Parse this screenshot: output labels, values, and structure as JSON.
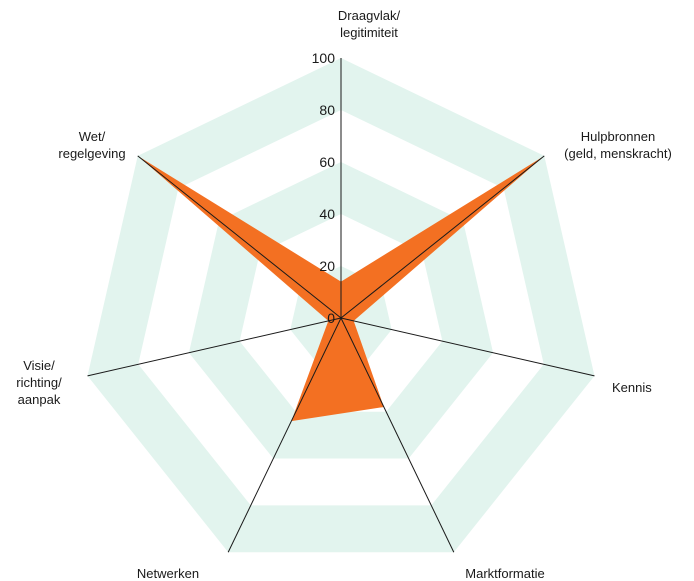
{
  "chart_data": {
    "type": "radar",
    "title": "",
    "rlim": [
      0,
      100
    ],
    "ticks": [
      "0",
      "20",
      "40",
      "60",
      "80",
      "100"
    ],
    "tick_values": [
      0,
      20,
      40,
      60,
      80,
      100
    ],
    "axes": [
      {
        "label_lines": [
          "Draagvlak/",
          "legitimiteit"
        ]
      },
      {
        "label_lines": [
          "Hulpbronnen",
          "(geld, menskracht)"
        ]
      },
      {
        "label_lines": [
          "Kennis"
        ]
      },
      {
        "label_lines": [
          "Marktformatie"
        ]
      },
      {
        "label_lines": [
          "Netwerken"
        ]
      },
      {
        "label_lines": [
          "Visie/",
          "richting/",
          "aanpak"
        ]
      },
      {
        "label_lines": [
          "Wet/",
          "regelgeving"
        ]
      }
    ],
    "series": [
      {
        "values": [
          14,
          100,
          5,
          38,
          44,
          5,
          100
        ]
      }
    ],
    "colors": {
      "band": "#e2f4ee",
      "fill": "#f37022",
      "line": "#1a1a1a"
    }
  }
}
